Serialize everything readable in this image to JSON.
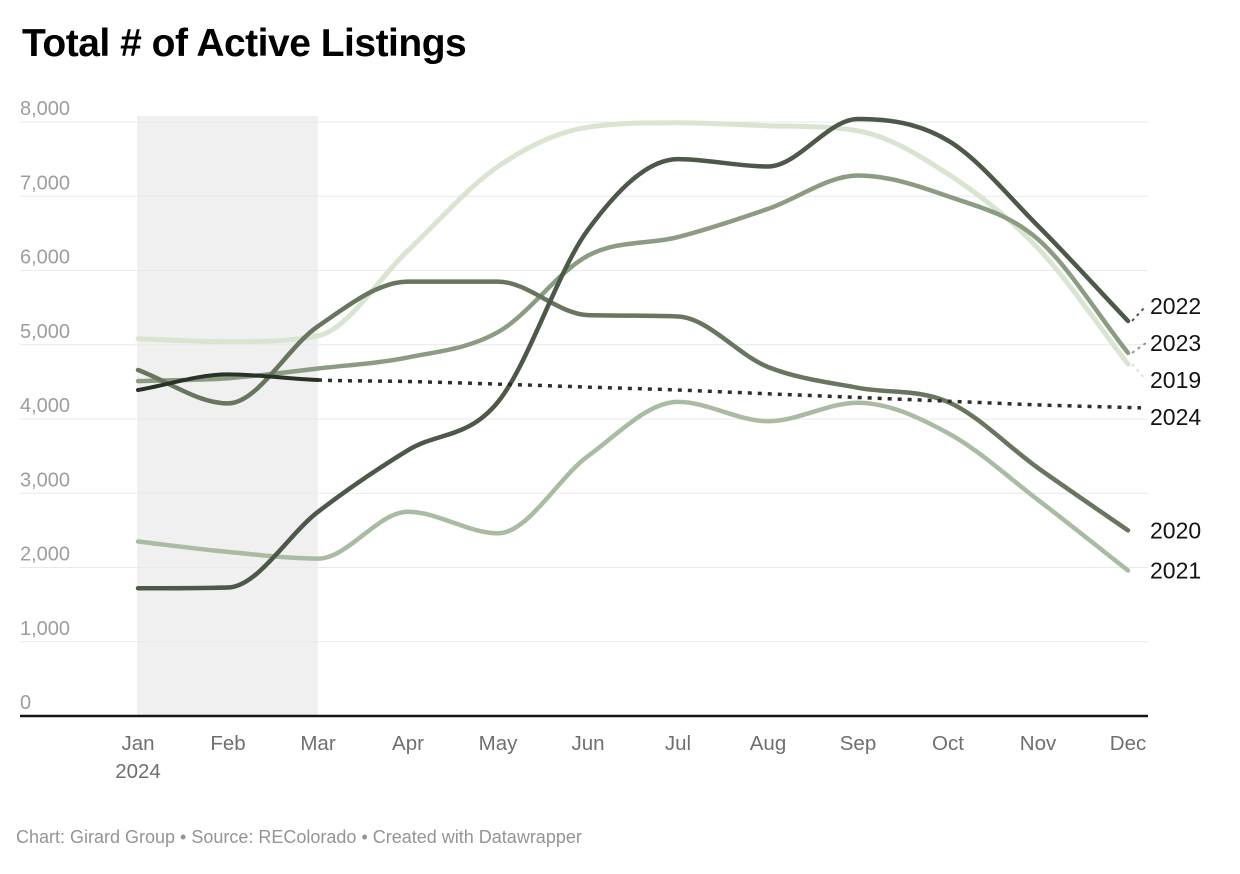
{
  "title": "Total # of Active Listings",
  "footer": {
    "text": "Chart: Girard Group • Source: REColorado • Created with Datawrapper"
  },
  "chart_data": {
    "type": "line",
    "title": "Total # of Active Listings",
    "x_categories": [
      "Jan",
      "Feb",
      "Mar",
      "Apr",
      "May",
      "Jun",
      "Jul",
      "Aug",
      "Sep",
      "Oct",
      "Nov",
      "Dec"
    ],
    "x_first_label_year": "2024",
    "y_ticks": [
      0,
      1000,
      2000,
      3000,
      4000,
      5000,
      6000,
      7000,
      8000
    ],
    "y_tick_labels": [
      "0",
      "1,000",
      "2,000",
      "3,000",
      "4,000",
      "5,000",
      "6,000",
      "7,000",
      "8,000"
    ],
    "ylim": [
      0,
      8000
    ],
    "grid": true,
    "legend_position": "right-edge-line-labels",
    "highlight_band": {
      "from_index": 0,
      "to_index": 2,
      "color": "#f0f0f0"
    },
    "colors": {
      "grid": "#e9e9e9",
      "axis": "#161616",
      "y_tick_label": "#9d9d9d",
      "x_tick_label": "#6f6f6f",
      "series_label": "#141414"
    },
    "series": [
      {
        "name": "2019",
        "color": "#d9e4d2",
        "width": 5,
        "values": [
          5080,
          5040,
          5120,
          6270,
          7400,
          7930,
          7990,
          7950,
          7880,
          7300,
          6300,
          4740
        ]
      },
      {
        "name": "2021",
        "color": "#a9bba2",
        "width": 4.5,
        "values": [
          2350,
          2210,
          2120,
          2750,
          2460,
          3500,
          4230,
          3970,
          4220,
          3810,
          2910,
          1960
        ]
      },
      {
        "name": "2023",
        "color": "#8b9c83",
        "width": 4.5,
        "values": [
          4510,
          4550,
          4680,
          4830,
          5170,
          6200,
          6450,
          6830,
          7280,
          7000,
          6420,
          4890
        ]
      },
      {
        "name": "2020",
        "color": "#68765f",
        "width": 4.5,
        "values": [
          4660,
          4210,
          5250,
          5850,
          5850,
          5400,
          5380,
          4700,
          4420,
          4230,
          3340,
          2500
        ]
      },
      {
        "name": "2022",
        "color": "#4c5848",
        "width": 4.5,
        "values": [
          1720,
          1730,
          2750,
          3580,
          4230,
          6550,
          7500,
          7400,
          8040,
          7750,
          6600,
          5320
        ]
      },
      {
        "name": "2024",
        "color": "#2a3227",
        "width": 4,
        "dashed_from_index": 2,
        "values": [
          4390,
          4600,
          4525,
          4505,
          4470,
          4430,
          4390,
          4340,
          4290,
          4240,
          4190,
          4155
        ]
      }
    ]
  }
}
